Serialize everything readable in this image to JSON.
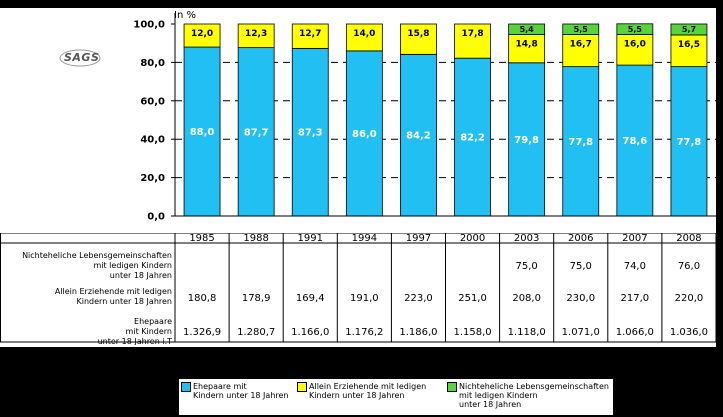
{
  "chart_data": {
    "type": "bar",
    "stacked": true,
    "unit_label": "In %",
    "categories": [
      "1985",
      "1988",
      "1991",
      "1994",
      "1997",
      "2000",
      "2003",
      "2006",
      "2007",
      "2008"
    ],
    "series": [
      {
        "name": "Ehepaare mit Kindern unter 18 Jahren",
        "color": "#22BFF2",
        "values": [
          88.0,
          87.7,
          87.3,
          86.0,
          84.2,
          82.2,
          79.8,
          77.8,
          78.6,
          77.8
        ],
        "labels": [
          "88,0",
          "87,7",
          "87,3",
          "86,0",
          "84,2",
          "82,2",
          "79,8",
          "77,8",
          "78,6",
          "77,8"
        ]
      },
      {
        "name": "Allein Erziehende mit ledigen Kindern unter 18 Jahren",
        "color": "#FFFF00",
        "values": [
          12.0,
          12.3,
          12.7,
          14.0,
          15.8,
          17.8,
          14.8,
          16.7,
          16.0,
          16.5
        ],
        "labels": [
          "12,0",
          "12,3",
          "12,7",
          "14,0",
          "15,8",
          "17,8",
          "14,8",
          "16,7",
          "16,0",
          "16,5"
        ]
      },
      {
        "name": "Nichteheliche Lebensgemeinschaften mit ledigen Kindern unter 18 Jahren",
        "color": "#56D43A",
        "values": [
          0,
          0,
          0,
          0,
          0,
          0,
          5.4,
          5.5,
          5.5,
          5.7
        ],
        "labels": [
          "",
          "",
          "",
          "",
          "",
          "",
          "5,4",
          "5,5",
          "5,5",
          "5,7"
        ]
      }
    ],
    "ylim": [
      0,
      100
    ],
    "yticks": [
      "0,0",
      "20,0",
      "40,0",
      "60,0",
      "80,0",
      "100,0"
    ],
    "grid": true,
    "legend_position": "bottom"
  },
  "table": {
    "rows": [
      {
        "label": "Nichteheliche Lebensgemeinschaften\nmit ledigen Kindern\nunter 18 Jahren",
        "values": [
          "",
          "",
          "",
          "",
          "",
          "",
          "75,0",
          "75,0",
          "74,0",
          "76,0"
        ]
      },
      {
        "label": "Allein Erziehende mit ledigen\nKindern unter 18 Jahren",
        "values": [
          "180,8",
          "178,9",
          "169,4",
          "191,0",
          "223,0",
          "251,0",
          "208,0",
          "230,0",
          "217,0",
          "220,0"
        ]
      },
      {
        "label": "Ehepaare\nmit Kindern\nunter 18 Jahren i.T",
        "values": [
          "1.326,9",
          "1.280,7",
          "1.166,0",
          "1.176,2",
          "1.186,0",
          "1.158,0",
          "1.118,0",
          "1.071,0",
          "1.066,0",
          "1.036,0"
        ]
      }
    ]
  },
  "legend": [
    {
      "label": "Ehepaare mit\nKindern unter 18 Jahren",
      "color": "#22BFF2"
    },
    {
      "label": "Allein Erziehende mit ledigen\nKindern unter 18 Jahren",
      "color": "#FFFF00"
    },
    {
      "label": "Nichteheliche Lebensgemeinschaften\nmit ledigen Kindern\nunter 18 Jahren",
      "color": "#56D43A"
    }
  ],
  "logo": {
    "text": "SAGS"
  }
}
